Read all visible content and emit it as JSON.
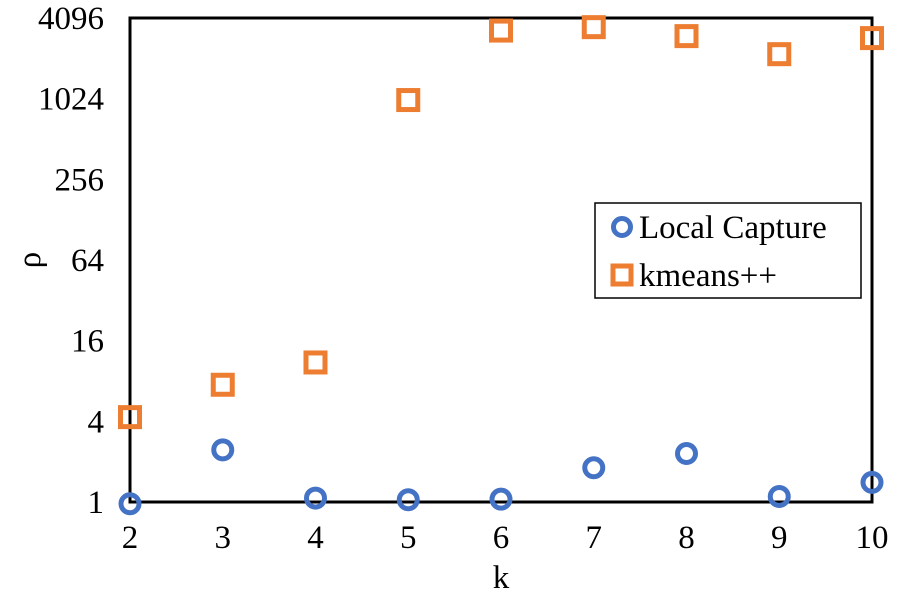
{
  "chart_data": {
    "type": "scatter",
    "xlabel": "k",
    "ylabel": "ρ",
    "y_scale": "log2",
    "x_ticks": [
      2,
      3,
      4,
      5,
      6,
      7,
      8,
      9,
      10
    ],
    "xlim": [
      2,
      10
    ],
    "y_ticks": [
      1,
      4,
      16,
      64,
      256,
      1024,
      4096
    ],
    "y_tick_labels": [
      "1",
      "4",
      "16",
      "64",
      "256",
      "1024",
      "4096"
    ],
    "ylim": [
      1,
      4096
    ],
    "grid": false,
    "legend_position": "right",
    "series": [
      {
        "name": "Local Capture",
        "marker": "circle",
        "color": "#4472C4",
        "x": [
          2,
          3,
          4,
          5,
          6,
          7,
          8,
          9,
          10
        ],
        "y": [
          0.97,
          2.45,
          1.07,
          1.04,
          1.05,
          1.8,
          2.3,
          1.1,
          1.4
        ]
      },
      {
        "name": "kmeans++",
        "marker": "square",
        "color": "#ED7D31",
        "x": [
          2,
          3,
          4,
          5,
          6,
          7,
          8,
          9,
          10
        ],
        "y": [
          4.3,
          7.5,
          11,
          1000,
          3300,
          3500,
          3000,
          2200,
          2900
        ]
      }
    ]
  }
}
